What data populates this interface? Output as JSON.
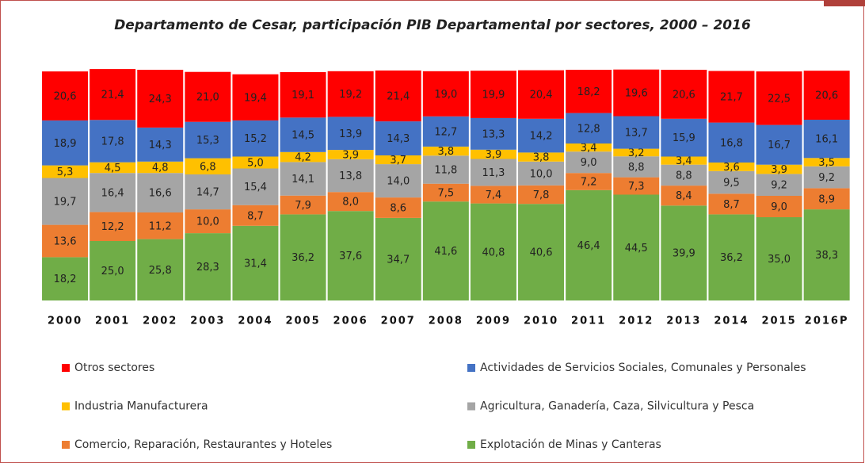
{
  "chart_data": {
    "type": "stacked_bar",
    "title": "Departamento de Cesar, participación PIB Departamental por sectores, 2000 – 2016",
    "categories": [
      "2000",
      "2001",
      "2002",
      "2003",
      "2004",
      "2005",
      "2006",
      "2007",
      "2008",
      "2009",
      "2010",
      "2011",
      "2012",
      "2013",
      "2014",
      "2015",
      "2016P"
    ],
    "series": [
      {
        "name": "Otros sectores",
        "color": "#ff0000",
        "values": [
          20.6,
          21.4,
          24.3,
          21.0,
          19.4,
          19.1,
          19.2,
          21.4,
          19.0,
          19.9,
          20.4,
          18.2,
          19.6,
          20.6,
          21.7,
          22.5,
          20.6
        ],
        "value_labels": [
          "20,6",
          "21,4",
          "24,3",
          "21,0",
          "19,4",
          "19,1",
          "19,2",
          "21,4",
          "19,0",
          "19,9",
          "20,4",
          "18,2",
          "19,6",
          "20,6",
          "21,7",
          "22,5",
          "20,6"
        ]
      },
      {
        "name": "Actividades de Servicios Sociales, Comunales y Personales",
        "color": "#4472c4",
        "values": [
          18.9,
          17.8,
          14.3,
          15.3,
          15.2,
          14.5,
          13.9,
          14.3,
          12.7,
          13.3,
          14.2,
          12.8,
          13.7,
          15.9,
          16.8,
          16.7,
          16.1
        ],
        "value_labels": [
          "18,9",
          "17,8",
          "14,3",
          "15,3",
          "15,2",
          "14,5",
          "13,9",
          "14,3",
          "12,7",
          "13,3",
          "14,2",
          "12,8",
          "13,7",
          "15,9",
          "16,8",
          "16,7",
          "16,1"
        ]
      },
      {
        "name": "Industria Manufacturera",
        "color": "#ffc000",
        "values": [
          5.3,
          4.5,
          4.8,
          6.8,
          5.0,
          4.2,
          3.9,
          3.7,
          3.8,
          3.9,
          3.8,
          3.4,
          3.2,
          3.4,
          3.6,
          3.9,
          3.5
        ],
        "value_labels": [
          "5,3",
          "4,5",
          "4,8",
          "6,8",
          "5,0",
          "4,2",
          "3,9",
          "3,7",
          "3,8",
          "3,9",
          "3,8",
          "3,4",
          "3,2",
          "3,4",
          "3,6",
          "3,9",
          "3,5"
        ]
      },
      {
        "name": "Agricultura, Ganadería, Caza, Silvicultura y Pesca",
        "color": "#a5a5a5",
        "values": [
          19.7,
          16.4,
          16.6,
          14.7,
          15.4,
          14.1,
          13.8,
          14.0,
          11.8,
          11.3,
          10.0,
          9.0,
          8.8,
          8.8,
          9.5,
          9.2,
          9.2
        ],
        "value_labels": [
          "19,7",
          "16,4",
          "16,6",
          "14,7",
          "15,4",
          "14,1",
          "13,8",
          "14,0",
          "11,8",
          "11,3",
          "10,0",
          "9,0",
          "8,8",
          "8,8",
          "9,5",
          "9,2",
          "9,2"
        ]
      },
      {
        "name": "Comercio, Reparación, Restaurantes y Hoteles",
        "color": "#ed7d31",
        "values": [
          13.6,
          12.2,
          11.2,
          10.0,
          8.7,
          7.9,
          8.0,
          8.6,
          7.5,
          7.4,
          7.8,
          7.2,
          7.3,
          8.4,
          8.7,
          9.0,
          8.9
        ],
        "value_labels": [
          "13,6",
          "12,2",
          "11,2",
          "10,0",
          "8,7",
          "7,9",
          "8,0",
          "8,6",
          "7,5",
          "7,4",
          "7,8",
          "7,2",
          "7,3",
          "8,4",
          "8,7",
          "9,0",
          "8,9"
        ]
      },
      {
        "name": "Explotación de Minas y Canteras",
        "color": "#70ad47",
        "values": [
          18.2,
          25.0,
          25.8,
          28.3,
          31.4,
          36.2,
          37.6,
          34.7,
          41.6,
          40.8,
          40.6,
          46.4,
          44.5,
          39.9,
          36.2,
          35.0,
          38.3
        ],
        "value_labels": [
          "18,2",
          "25,0",
          "25,8",
          "28,3",
          "31,4",
          "36,2",
          "37,6",
          "34,7",
          "41,6",
          "40,8",
          "40,6",
          "46,4",
          "44,5",
          "39,9",
          "36,2",
          "35,0",
          "38,3"
        ]
      }
    ]
  }
}
